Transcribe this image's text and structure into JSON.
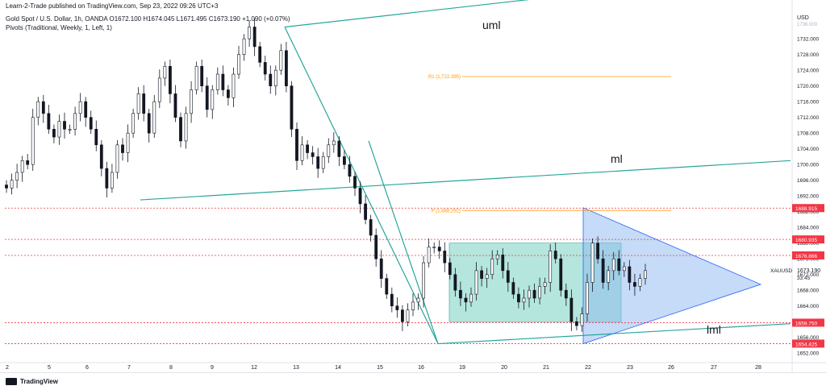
{
  "header": {
    "publisher": "Learn-2-Trade published on TradingView.com, Sep 23, 2022 09:26 UTC+3",
    "ohlc": "Gold Spot / U.S. Dollar, 1h, OANDA  O1672.100  H1674.045  L1671.495  C1673.190  +1.090 (+0.07%)",
    "indicator": "Pivots (Traditional, Weekly, 1, Left, 1)"
  },
  "footer": {
    "brand": "TradingView"
  },
  "colors": {
    "up": "#131722",
    "down": "#131722",
    "trend": "#26a69a",
    "pivot": "#ff9800",
    "level": "#f23645",
    "rect": "#5bc8b3",
    "triangle": "#8cb8f0"
  },
  "chart_data": {
    "type": "candlestick",
    "symbol": "XAUUSD",
    "currency": "USD",
    "last_price": "1673.190",
    "countdown": "33:45",
    "ylim": [
      1650,
      1739
    ],
    "y_ticks": [
      1652,
      1656,
      1660,
      1664,
      1668,
      1672,
      1676,
      1680,
      1684,
      1688,
      1692,
      1696,
      1700,
      1704,
      1708,
      1712,
      1716,
      1720,
      1724,
      1728,
      1732
    ],
    "y_ticks_top_partial": "1736.000",
    "x_tick_labels": [
      "2",
      "5",
      "6",
      "7",
      "8",
      "9",
      "12",
      "13",
      "14",
      "15",
      "16",
      "19",
      "20",
      "21",
      "22",
      "23",
      "26",
      "27",
      "28"
    ],
    "levels": [
      {
        "price": 1688.915,
        "label": "1688.915"
      },
      {
        "price": 1680.935,
        "label": "1680.935"
      },
      {
        "price": 1676.866,
        "label": "1676.866"
      },
      {
        "price": 1659.75,
        "label": "1659.750"
      },
      {
        "price": 1654.425,
        "label": "1654.425"
      }
    ],
    "pivots": [
      {
        "name": "R1",
        "label": "R1 (1,722.395)",
        "price": 1722.395
      },
      {
        "name": "P",
        "label": "P (1,688.292)",
        "price": 1688.292
      }
    ],
    "annotations": [
      "uml",
      "ml",
      "lml"
    ],
    "close_path": [
      1694,
      1696,
      1698,
      1701,
      1700,
      1712,
      1716,
      1713,
      1709,
      1707,
      1711,
      1709,
      1709,
      1713,
      1716,
      1712,
      1709,
      1705,
      1699,
      1694,
      1698,
      1705,
      1703,
      1708,
      1713,
      1718,
      1713,
      1708,
      1716,
      1722,
      1725,
      1718,
      1712,
      1706,
      1713,
      1719,
      1725,
      1720,
      1714,
      1719,
      1723,
      1719,
      1717,
      1723,
      1728,
      1732,
      1735,
      1730,
      1726,
      1723,
      1720,
      1724,
      1729,
      1720,
      1709,
      1701,
      1705,
      1703,
      1702,
      1699,
      1702,
      1705,
      1706,
      1702,
      1700,
      1697,
      1694,
      1690,
      1686,
      1682,
      1676,
      1671,
      1667,
      1664,
      1663,
      1660,
      1663,
      1665,
      1666,
      1675,
      1679,
      1679,
      1678,
      1675,
      1672,
      1668,
      1666,
      1665,
      1667,
      1673,
      1671,
      1672,
      1676,
      1677,
      1673,
      1670,
      1667,
      1665,
      1666,
      1668,
      1666,
      1669,
      1670,
      1678,
      1676,
      1668,
      1666,
      1660,
      1659,
      1662,
      1670,
      1680,
      1676,
      1670,
      1673,
      1676,
      1673,
      1674,
      1670,
      1669,
      1671,
      1673
    ]
  }
}
